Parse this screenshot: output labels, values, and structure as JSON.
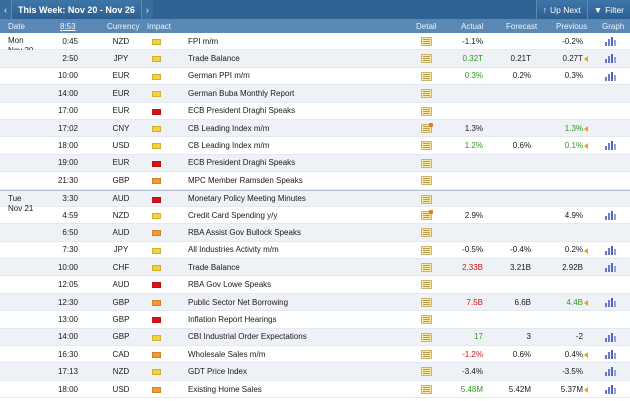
{
  "topbar": {
    "prev_icon": "chevron-left",
    "week_title": "This Week: Nov 20 - Nov 26",
    "next_icon": "chevron-right",
    "up_next_label": "Up Next",
    "filter_label": "Filter"
  },
  "columns": {
    "date": "Date",
    "time": "8:53",
    "currency": "Currency",
    "impact": "Impact",
    "detail": "Detail",
    "actual": "Actual",
    "forecast": "Forecast",
    "previous": "Previous",
    "graph": "Graph"
  },
  "colors": {
    "low": "#f3d23c",
    "medium": "#f39a33",
    "high": "#d8141b",
    "better": "#2f9a1e",
    "worse": "#d0161c"
  },
  "rows": [
    {
      "day": "Mon",
      "date": "Nov 20",
      "time": "0:45",
      "currency": "NZD",
      "impact": "low",
      "event": "FPI m/m",
      "actual": "-1.1%",
      "actual_color": "",
      "forecast": "",
      "previous": "-0.2%",
      "previous_color": "",
      "revised": false,
      "graph": true,
      "detail_new": false
    },
    {
      "day": "",
      "date": "",
      "time": "2:50",
      "currency": "JPY",
      "impact": "low",
      "event": "Trade Balance",
      "actual": "0.32T",
      "actual_color": "green",
      "forecast": "0.21T",
      "previous": "0.27T",
      "previous_color": "",
      "revised": true,
      "graph": true,
      "detail_new": false
    },
    {
      "day": "",
      "date": "",
      "time": "10:00",
      "currency": "EUR",
      "impact": "low",
      "event": "German PPI m/m",
      "actual": "0.3%",
      "actual_color": "green",
      "forecast": "0.2%",
      "previous": "0.3%",
      "previous_color": "",
      "revised": false,
      "graph": true,
      "detail_new": false
    },
    {
      "day": "",
      "date": "",
      "time": "14:00",
      "currency": "EUR",
      "impact": "low",
      "event": "German Buba Monthly Report",
      "actual": "",
      "actual_color": "",
      "forecast": "",
      "previous": "",
      "previous_color": "",
      "revised": false,
      "graph": false,
      "detail_new": false
    },
    {
      "day": "",
      "date": "",
      "time": "17:00",
      "currency": "EUR",
      "impact": "high",
      "event": "ECB President Draghi Speaks",
      "actual": "",
      "actual_color": "",
      "forecast": "",
      "previous": "",
      "previous_color": "",
      "revised": false,
      "graph": false,
      "detail_new": false
    },
    {
      "day": "",
      "date": "",
      "time": "17:02",
      "currency": "CNY",
      "impact": "low",
      "event": "CB Leading Index m/m",
      "actual": "1.3%",
      "actual_color": "",
      "forecast": "",
      "previous": "1.3%",
      "previous_color": "green",
      "revised": true,
      "graph": false,
      "detail_new": true
    },
    {
      "day": "",
      "date": "",
      "time": "18:00",
      "currency": "USD",
      "impact": "low",
      "event": "CB Leading Index m/m",
      "actual": "1.2%",
      "actual_color": "green",
      "forecast": "0.6%",
      "previous": "0.1%",
      "previous_color": "green",
      "revised": true,
      "graph": true,
      "detail_new": false
    },
    {
      "day": "",
      "date": "",
      "time": "19:00",
      "currency": "EUR",
      "impact": "high",
      "event": "ECB President Draghi Speaks",
      "actual": "",
      "actual_color": "",
      "forecast": "",
      "previous": "",
      "previous_color": "",
      "revised": false,
      "graph": false,
      "detail_new": false
    },
    {
      "day": "",
      "date": "",
      "time": "21:30",
      "currency": "GBP",
      "impact": "medium",
      "event": "MPC Member Ramsden Speaks",
      "actual": "",
      "actual_color": "",
      "forecast": "",
      "previous": "",
      "previous_color": "",
      "revised": false,
      "graph": false,
      "detail_new": false
    },
    {
      "day": "Tue",
      "date": "Nov 21",
      "time": "3:30",
      "currency": "AUD",
      "impact": "high",
      "event": "Monetary Policy Meeting Minutes",
      "actual": "",
      "actual_color": "",
      "forecast": "",
      "previous": "",
      "previous_color": "",
      "revised": false,
      "graph": false,
      "detail_new": false
    },
    {
      "day": "",
      "date": "",
      "time": "4:59",
      "currency": "NZD",
      "impact": "low",
      "event": "Credit Card Spending y/y",
      "actual": "2.9%",
      "actual_color": "",
      "forecast": "",
      "previous": "4.9%",
      "previous_color": "",
      "revised": false,
      "graph": true,
      "detail_new": true
    },
    {
      "day": "",
      "date": "",
      "time": "6:50",
      "currency": "AUD",
      "impact": "medium",
      "event": "RBA Assist Gov Bullock Speaks",
      "actual": "",
      "actual_color": "",
      "forecast": "",
      "previous": "",
      "previous_color": "",
      "revised": false,
      "graph": false,
      "detail_new": false
    },
    {
      "day": "",
      "date": "",
      "time": "7:30",
      "currency": "JPY",
      "impact": "low",
      "event": "All Industries Activity m/m",
      "actual": "-0.5%",
      "actual_color": "",
      "forecast": "-0.4%",
      "previous": "0.2%",
      "previous_color": "",
      "revised": true,
      "graph": true,
      "detail_new": false
    },
    {
      "day": "",
      "date": "",
      "time": "10:00",
      "currency": "CHF",
      "impact": "low",
      "event": "Trade Balance",
      "actual": "2.33B",
      "actual_color": "red",
      "forecast": "3.21B",
      "previous": "2.92B",
      "previous_color": "",
      "revised": false,
      "graph": true,
      "detail_new": false
    },
    {
      "day": "",
      "date": "",
      "time": "12:05",
      "currency": "AUD",
      "impact": "high",
      "event": "RBA Gov Lowe Speaks",
      "actual": "",
      "actual_color": "",
      "forecast": "",
      "previous": "",
      "previous_color": "",
      "revised": false,
      "graph": false,
      "detail_new": false
    },
    {
      "day": "",
      "date": "",
      "time": "12:30",
      "currency": "GBP",
      "impact": "medium",
      "event": "Public Sector Net Borrowing",
      "actual": "7.5B",
      "actual_color": "red",
      "forecast": "6.6B",
      "previous": "4.4B",
      "previous_color": "green",
      "revised": true,
      "graph": true,
      "detail_new": false
    },
    {
      "day": "",
      "date": "",
      "time": "13:00",
      "currency": "GBP",
      "impact": "high",
      "event": "Inflation Report Hearings",
      "actual": "",
      "actual_color": "",
      "forecast": "",
      "previous": "",
      "previous_color": "",
      "revised": false,
      "graph": false,
      "detail_new": false
    },
    {
      "day": "",
      "date": "",
      "time": "14:00",
      "currency": "GBP",
      "impact": "low",
      "event": "CBI Industrial Order Expectations",
      "actual": "17",
      "actual_color": "green",
      "forecast": "3",
      "previous": "-2",
      "previous_color": "",
      "revised": false,
      "graph": true,
      "detail_new": false
    },
    {
      "day": "",
      "date": "",
      "time": "16:30",
      "currency": "CAD",
      "impact": "medium",
      "event": "Wholesale Sales m/m",
      "actual": "-1.2%",
      "actual_color": "red",
      "forecast": "0.6%",
      "previous": "0.4%",
      "previous_color": "",
      "revised": true,
      "graph": true,
      "detail_new": false
    },
    {
      "day": "",
      "date": "",
      "time": "17:13",
      "currency": "NZD",
      "impact": "low",
      "event": "GDT Price Index",
      "actual": "-3.4%",
      "actual_color": "",
      "forecast": "",
      "previous": "-3.5%",
      "previous_color": "",
      "revised": false,
      "graph": true,
      "detail_new": false
    },
    {
      "day": "",
      "date": "",
      "time": "18:00",
      "currency": "USD",
      "impact": "medium",
      "event": "Existing Home Sales",
      "actual": "5.48M",
      "actual_color": "green",
      "forecast": "5.42M",
      "previous": "5.37M",
      "previous_color": "",
      "revised": true,
      "graph": true,
      "detail_new": false
    }
  ]
}
